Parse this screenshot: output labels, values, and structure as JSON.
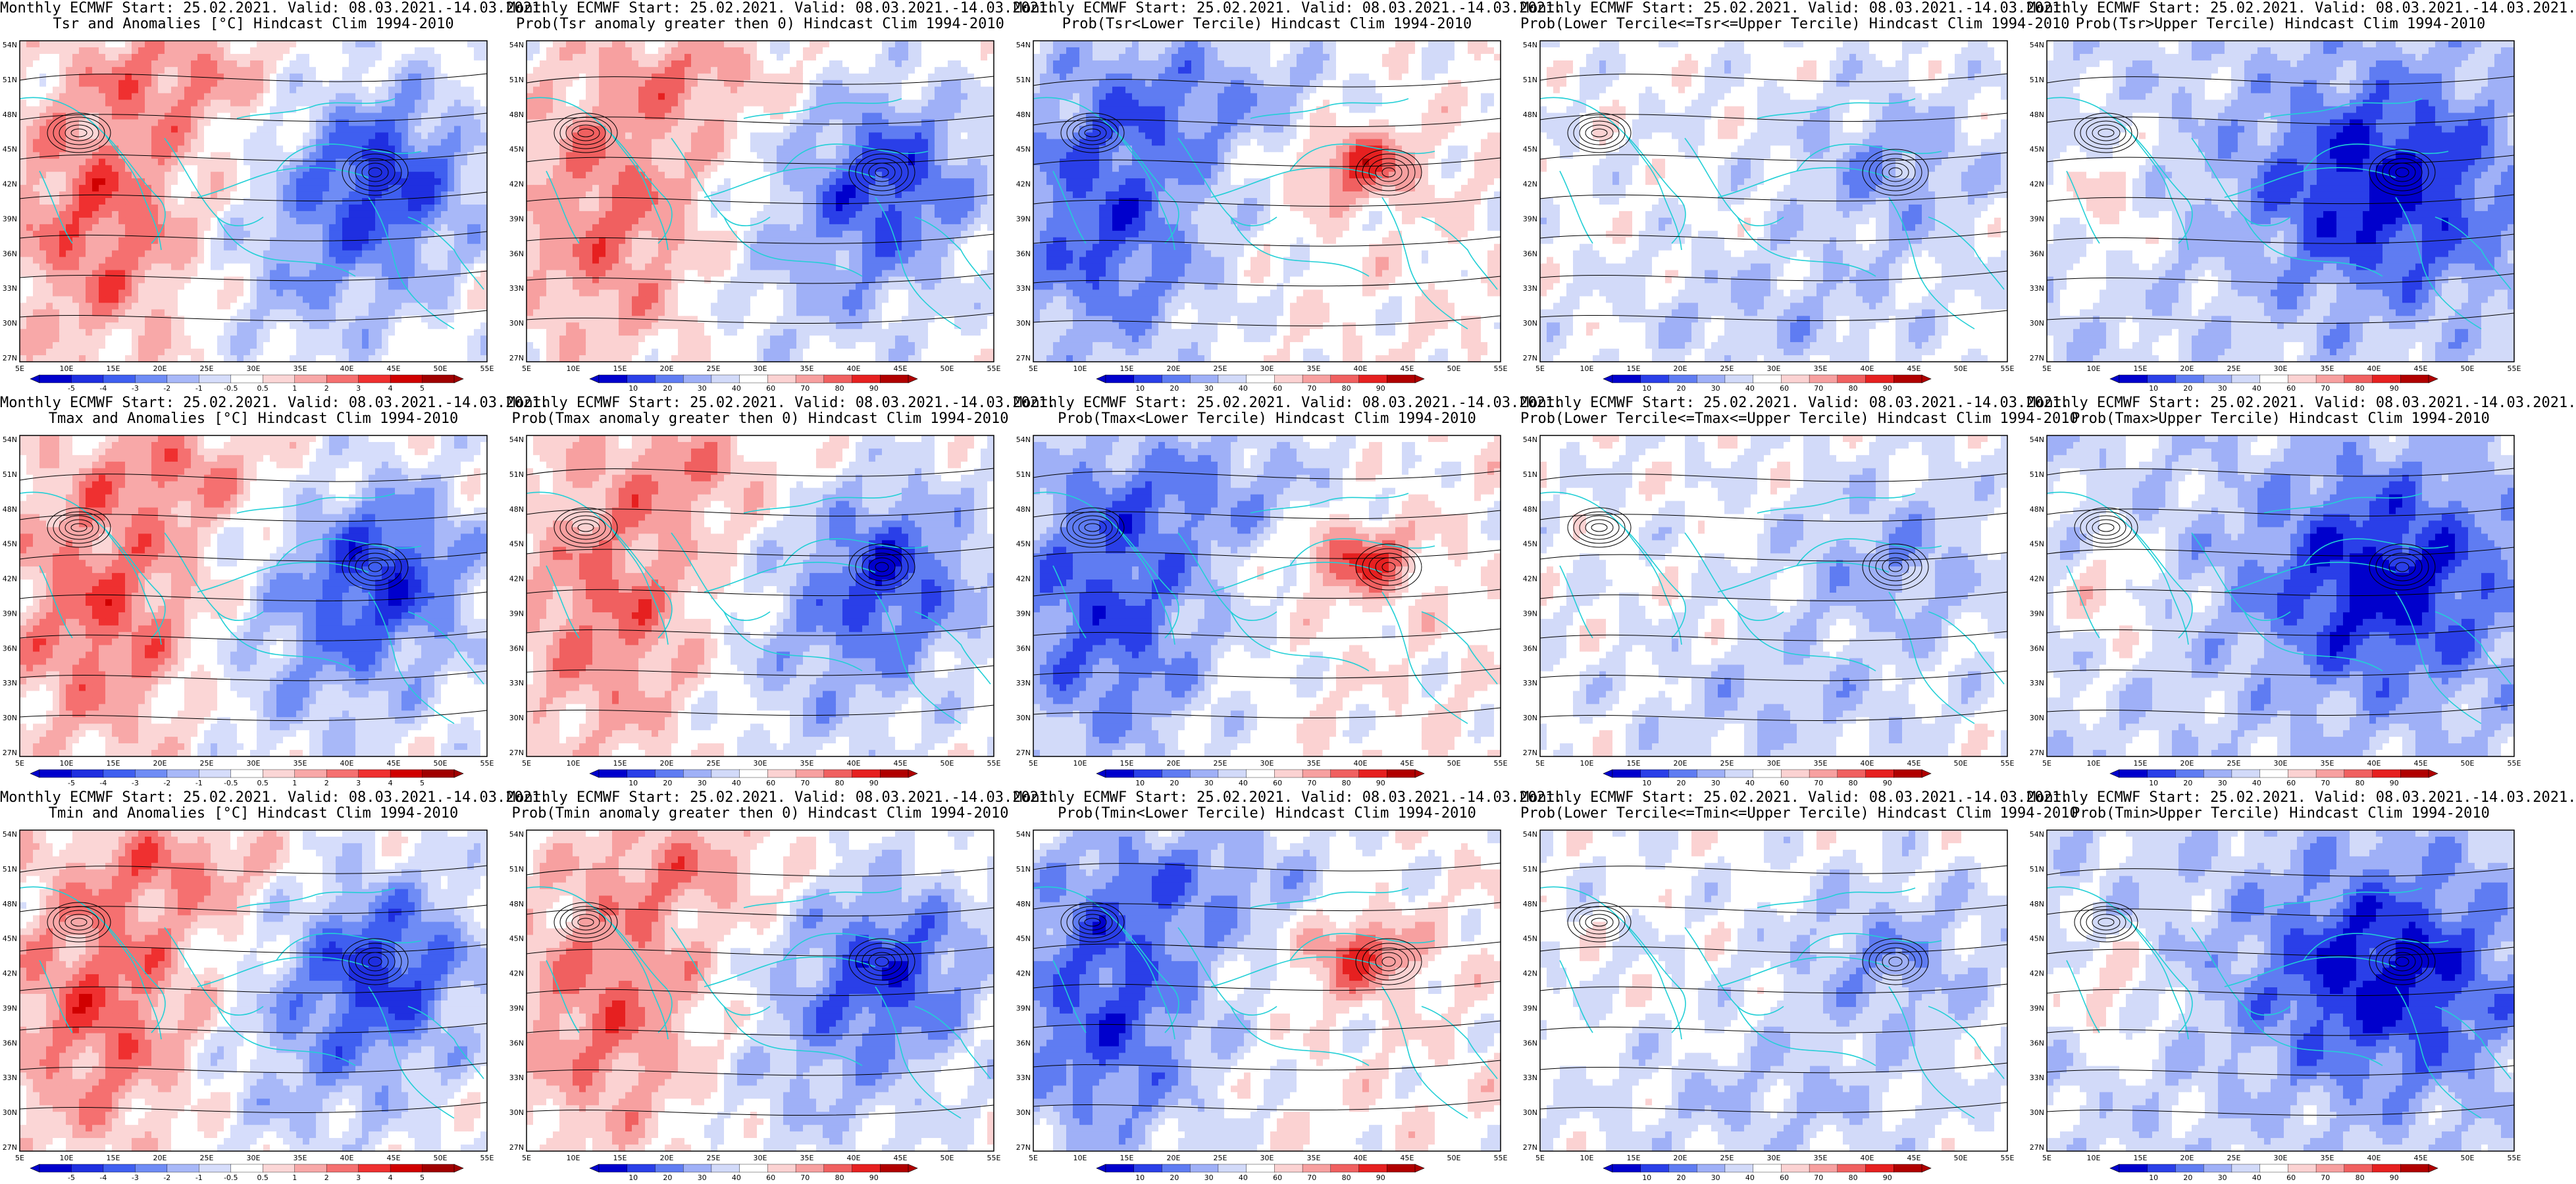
{
  "panels": [
    {
      "line1": "Monthly ECMWF Start: 25.02.2021. Valid: 08.03.2021.-14.03.2021.",
      "line2": "Tsr and Anomalies [°C] Hindcast Clim 1994-2010",
      "kind": "anom",
      "pattern": "w"
    },
    {
      "line1": "Monthly ECMWF Start: 25.02.2021. Valid: 08.03.2021.-14.03.2021.",
      "line2": "Prob(Tsr anomaly greater then 0) Hindcast Clim 1994-2010",
      "kind": "prob",
      "pattern": "w"
    },
    {
      "line1": "Monthly ECMWF Start: 25.02.2021. Valid: 08.03.2021.-14.03.2021.",
      "line2": "Prob(Tsr<Lower Tercile) Hindcast Clim 1994-2010",
      "kind": "prob",
      "pattern": "lower"
    },
    {
      "line1": "Monthly ECMWF Start: 25.02.2021. Valid: 08.03.2021.-14.03.2021.",
      "line2": "Prob(Lower Tercile<=Tsr<=Upper Tercile) Hindcast Clim 1994-2010",
      "kind": "prob",
      "pattern": "mid"
    },
    {
      "line1": "Monthly ECMWF Start: 25.02.2021. Valid: 08.03.2021.-14.03.2021.",
      "line2": "Prob(Tsr>Upper Tercile) Hindcast Clim 1994-2010",
      "kind": "prob",
      "pattern": "upper"
    },
    {
      "line1": "Monthly ECMWF Start: 25.02.2021. Valid: 08.03.2021.-14.03.2021.",
      "line2": "Tmax and Anomalies [°C] Hindcast Clim 1994-2010",
      "kind": "anom",
      "pattern": "w"
    },
    {
      "line1": "Monthly ECMWF Start: 25.02.2021. Valid: 08.03.2021.-14.03.2021.",
      "line2": "Prob(Tmax anomaly greater then 0) Hindcast Clim 1994-2010",
      "kind": "prob",
      "pattern": "w"
    },
    {
      "line1": "Monthly ECMWF Start: 25.02.2021. Valid: 08.03.2021.-14.03.2021.",
      "line2": "Prob(Tmax<Lower Tercile) Hindcast Clim 1994-2010",
      "kind": "prob",
      "pattern": "lower"
    },
    {
      "line1": "Monthly ECMWF Start: 25.02.2021. Valid: 08.03.2021.-14.03.2021.",
      "line2": "Prob(Lower Tercile<=Tmax<=Upper Tercile) Hindcast Clim 1994-2010",
      "kind": "prob",
      "pattern": "mid"
    },
    {
      "line1": "Monthly ECMWF Start: 25.02.2021. Valid: 08.03.2021.-14.03.2021.",
      "line2": "Prob(Tmax>Upper Tercile) Hindcast Clim 1994-2010",
      "kind": "prob",
      "pattern": "upper"
    },
    {
      "line1": "Monthly ECMWF Start: 25.02.2021. Valid: 08.03.2021.-14.03.2021.",
      "line2": "Tmin and Anomalies [°C] Hindcast Clim 1994-2010",
      "kind": "anom",
      "pattern": "w"
    },
    {
      "line1": "Monthly ECMWF Start: 25.02.2021. Valid: 08.03.2021.-14.03.2021.",
      "line2": "Prob(Tmin anomaly greater then 0) Hindcast Clim 1994-2010",
      "kind": "prob",
      "pattern": "w"
    },
    {
      "line1": "Monthly ECMWF Start: 25.02.2021. Valid: 08.03.2021.-14.03.2021.",
      "line2": "Prob(Tmin<Lower Tercile) Hindcast Clim 1994-2010",
      "kind": "prob",
      "pattern": "lower"
    },
    {
      "line1": "Monthly ECMWF Start: 25.02.2021. Valid: 08.03.2021.-14.03.2021.",
      "line2": "Prob(Lower Tercile<=Tmin<=Upper Tercile) Hindcast Clim 1994-2010",
      "kind": "prob",
      "pattern": "mid"
    },
    {
      "line1": "Monthly ECMWF Start: 25.02.2021. Valid: 08.03.2021.-14.03.2021.",
      "line2": "Prob(Tmin>Upper Tercile) Hindcast Clim 1994-2010",
      "kind": "prob",
      "pattern": "upper"
    }
  ],
  "axes": {
    "lat_labels": [
      "54N",
      "51N",
      "48N",
      "45N",
      "42N",
      "39N",
      "36N",
      "33N",
      "30N",
      "27N"
    ],
    "lon_labels": [
      "5E",
      "10E",
      "15E",
      "20E",
      "25E",
      "30E",
      "35E",
      "40E",
      "45E",
      "50E",
      "55E"
    ]
  },
  "colorbars": {
    "anom": [
      "-5",
      "-4",
      "-3",
      "-2",
      "-1",
      "-0.5",
      "0.5",
      "1",
      "2",
      "3",
      "4",
      "5"
    ],
    "prob": [
      "10",
      "20",
      "30",
      "40",
      "60",
      "70",
      "80",
      "90"
    ]
  },
  "palettes": {
    "anom": [
      "#0000cc",
      "#1f2fe0",
      "#3f5ff0",
      "#6f8cf5",
      "#a8b8f8",
      "#d6ddfb",
      "#ffffff",
      "#fbd6d6",
      "#f8a8a8",
      "#f57070",
      "#ef3030",
      "#d00000",
      "#a00000"
    ],
    "prob": [
      "#0000cc",
      "#2a3fe8",
      "#5f7cf2",
      "#9fb0f7",
      "#d2daf9",
      "#ffffff",
      "#fbd2d2",
      "#f7a0a0",
      "#f06060",
      "#e62020",
      "#b00000"
    ]
  },
  "colors": {
    "coastline": "#22cfd6",
    "contour": "#000000"
  }
}
